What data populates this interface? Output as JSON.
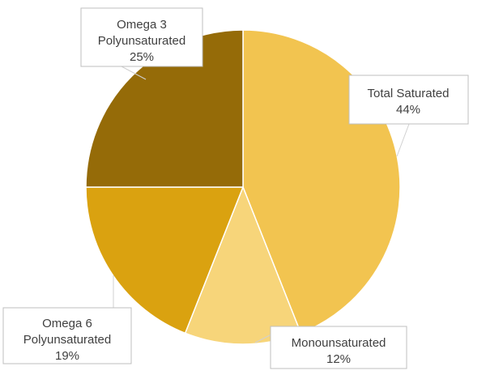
{
  "chart_data": {
    "type": "pie",
    "slices": [
      {
        "name_lines": [
          "Total Saturated"
        ],
        "name": "Total Saturated",
        "value": 44,
        "value_label": "44%",
        "color": "#f2c450"
      },
      {
        "name_lines": [
          "Monounsaturated"
        ],
        "name": "Monounsaturated",
        "value": 12,
        "value_label": "12%",
        "color": "#f7d57a"
      },
      {
        "name_lines": [
          "Omega 6",
          "Polyunsaturated"
        ],
        "name": "Omega 6 Polyunsaturated",
        "value": 19,
        "value_label": "19%",
        "color": "#daa210"
      },
      {
        "name_lines": [
          "Omega 3",
          "Polyunsaturated"
        ],
        "name": "Omega 3 Polyunsaturated",
        "value": 25,
        "value_label": "25%",
        "color": "#956b08"
      }
    ],
    "legend": "none",
    "data_labels": "callout"
  }
}
